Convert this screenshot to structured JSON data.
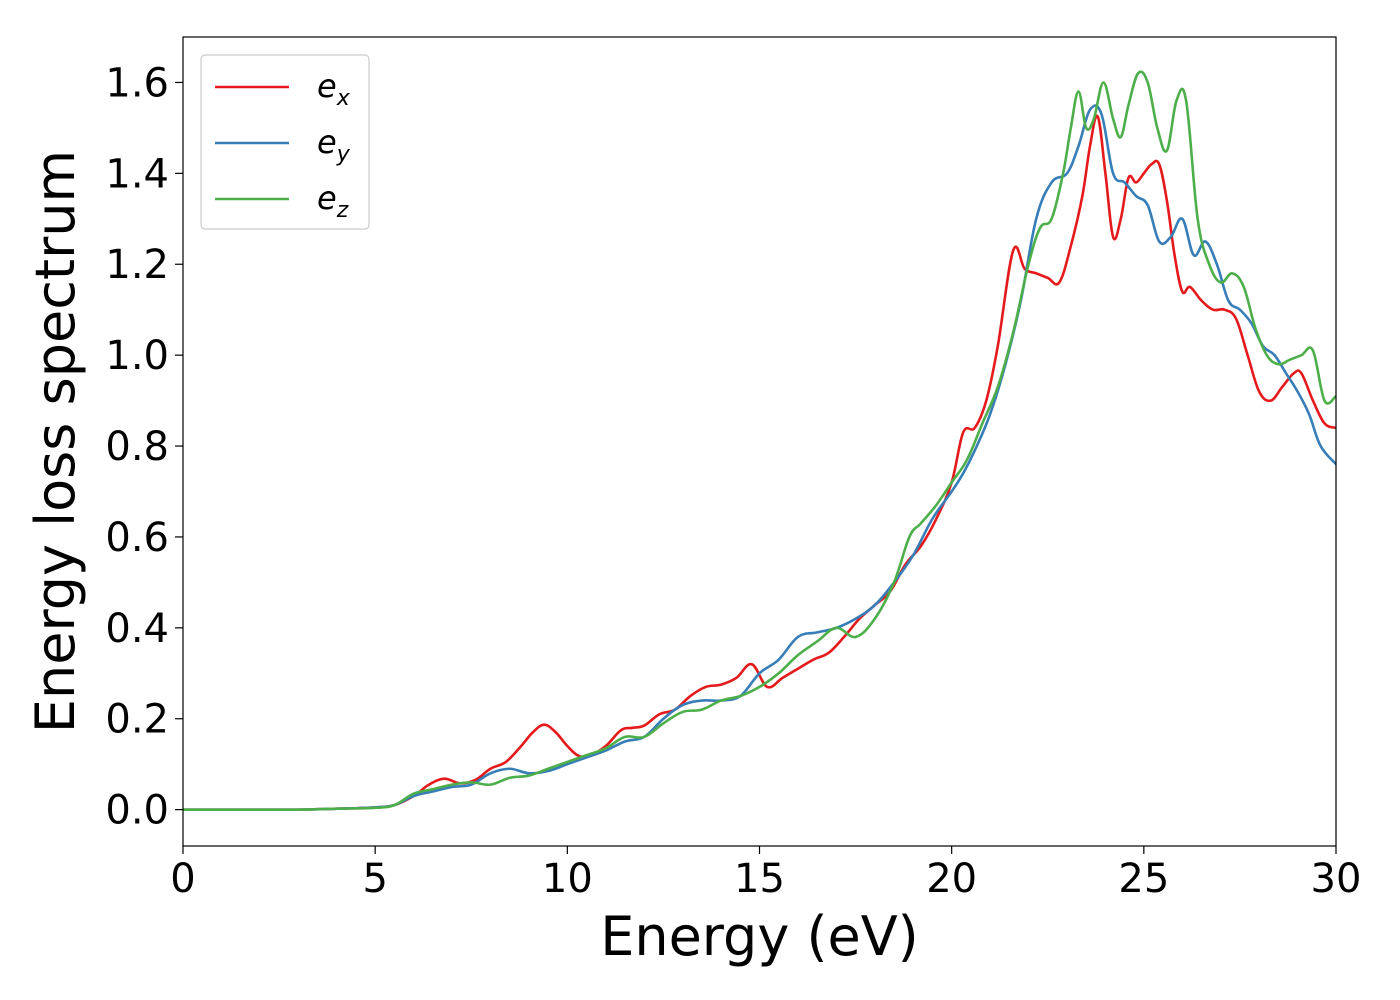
{
  "chart_data": {
    "type": "line",
    "xlabel": "Energy (eV)",
    "ylabel": "Energy loss spectrum",
    "xlim": [
      0,
      30
    ],
    "ylim": [
      -0.08,
      1.7
    ],
    "xticks": [
      0,
      5,
      10,
      15,
      20,
      25,
      30
    ],
    "xtick_labels": [
      "0",
      "5",
      "10",
      "15",
      "20",
      "25",
      "30"
    ],
    "yticks": [
      0.0,
      0.2,
      0.4,
      0.6,
      0.8,
      1.0,
      1.2,
      1.4,
      1.6
    ],
    "ytick_labels": [
      "0.0",
      "0.2",
      "0.4",
      "0.6",
      "0.8",
      "1.0",
      "1.2",
      "1.4",
      "1.6"
    ],
    "grid": false,
    "legend_position": "top-left",
    "series": [
      {
        "name": "e",
        "subscript": "x",
        "color": "#e41a1c",
        "x": [
          0,
          1,
          2,
          3,
          4,
          5,
          5.5,
          6,
          6.4,
          6.8,
          7.2,
          7.6,
          8,
          8.4,
          8.8,
          9.1,
          9.4,
          9.7,
          10,
          10.3,
          10.6,
          11,
          11.4,
          11.7,
          12,
          12.4,
          12.8,
          13.2,
          13.6,
          14,
          14.4,
          14.8,
          15.2,
          15.6,
          16,
          16.4,
          16.8,
          17.2,
          17.6,
          18,
          18.4,
          18.8,
          19.2,
          19.6,
          20,
          20.3,
          20.6,
          20.9,
          21.2,
          21.6,
          21.9,
          22.2,
          22.5,
          22.8,
          23.1,
          23.4,
          23.6,
          23.8,
          24,
          24.2,
          24.4,
          24.6,
          24.8,
          25,
          25.2,
          25.4,
          25.6,
          25.8,
          26,
          26.2,
          26.5,
          26.8,
          27.1,
          27.4,
          27.7,
          28,
          28.3,
          28.6,
          28.9,
          29.1,
          29.4,
          29.7,
          30
        ],
        "y": [
          0.0,
          0.0,
          0.0,
          0.0,
          0.002,
          0.005,
          0.01,
          0.03,
          0.055,
          0.068,
          0.058,
          0.065,
          0.09,
          0.105,
          0.14,
          0.17,
          0.187,
          0.17,
          0.14,
          0.118,
          0.12,
          0.14,
          0.175,
          0.18,
          0.185,
          0.21,
          0.22,
          0.25,
          0.27,
          0.275,
          0.29,
          0.32,
          0.27,
          0.29,
          0.31,
          0.33,
          0.345,
          0.38,
          0.42,
          0.45,
          0.48,
          0.54,
          0.58,
          0.64,
          0.72,
          0.83,
          0.84,
          0.9,
          1.02,
          1.23,
          1.19,
          1.18,
          1.17,
          1.16,
          1.24,
          1.35,
          1.46,
          1.525,
          1.4,
          1.26,
          1.3,
          1.39,
          1.38,
          1.4,
          1.42,
          1.42,
          1.34,
          1.22,
          1.14,
          1.15,
          1.12,
          1.1,
          1.1,
          1.08,
          1.0,
          0.92,
          0.9,
          0.93,
          0.96,
          0.96,
          0.9,
          0.85,
          0.84
        ]
      },
      {
        "name": "e",
        "subscript": "y",
        "color": "#377eb8",
        "x": [
          0,
          1,
          2,
          3,
          4,
          5,
          5.5,
          6,
          6.5,
          7,
          7.5,
          8,
          8.5,
          9,
          9.5,
          10,
          10.5,
          11,
          11.5,
          12,
          12.5,
          13,
          13.5,
          14,
          14.5,
          15,
          15.5,
          16,
          16.5,
          17,
          17.5,
          18,
          18.5,
          19,
          19.5,
          20,
          20.3,
          20.6,
          21,
          21.4,
          21.8,
          22.2,
          22.6,
          23,
          23.3,
          23.6,
          23.9,
          24.2,
          24.5,
          24.8,
          25.1,
          25.4,
          25.7,
          26,
          26.3,
          26.6,
          26.9,
          27.2,
          27.5,
          27.8,
          28.1,
          28.4,
          28.7,
          29,
          29.3,
          29.6,
          30
        ],
        "y": [
          0.0,
          0.0,
          0.0,
          0.0,
          0.002,
          0.005,
          0.01,
          0.03,
          0.04,
          0.05,
          0.055,
          0.08,
          0.09,
          0.08,
          0.085,
          0.1,
          0.115,
          0.13,
          0.15,
          0.16,
          0.2,
          0.23,
          0.24,
          0.24,
          0.25,
          0.3,
          0.33,
          0.38,
          0.39,
          0.4,
          0.42,
          0.45,
          0.5,
          0.56,
          0.64,
          0.7,
          0.74,
          0.79,
          0.87,
          0.98,
          1.12,
          1.3,
          1.38,
          1.4,
          1.46,
          1.54,
          1.53,
          1.4,
          1.38,
          1.35,
          1.33,
          1.25,
          1.26,
          1.3,
          1.22,
          1.25,
          1.2,
          1.12,
          1.1,
          1.07,
          1.02,
          1.0,
          0.96,
          0.92,
          0.87,
          0.8,
          0.76
        ]
      },
      {
        "name": "e",
        "subscript": "z",
        "color": "#4daf4a",
        "x": [
          0,
          1,
          2,
          3,
          4,
          5,
          5.5,
          6,
          6.5,
          7,
          7.5,
          8,
          8.5,
          9,
          9.5,
          10,
          10.5,
          11,
          11.5,
          12,
          12.5,
          13,
          13.5,
          14,
          14.5,
          15,
          15.5,
          16,
          16.5,
          17,
          17.5,
          18,
          18.5,
          18.9,
          19.2,
          19.6,
          20,
          20.4,
          20.8,
          21.2,
          21.6,
          22,
          22.3,
          22.6,
          22.9,
          23.1,
          23.3,
          23.5,
          23.7,
          23.95,
          24.2,
          24.4,
          24.6,
          24.85,
          25.1,
          25.35,
          25.6,
          25.85,
          26.1,
          26.4,
          26.7,
          27,
          27.3,
          27.6,
          27.9,
          28.2,
          28.5,
          28.8,
          29.1,
          29.4,
          29.7,
          30
        ],
        "y": [
          0.0,
          0.0,
          0.0,
          0.0,
          0.002,
          0.004,
          0.01,
          0.035,
          0.045,
          0.055,
          0.06,
          0.055,
          0.07,
          0.075,
          0.09,
          0.105,
          0.12,
          0.135,
          0.16,
          0.16,
          0.19,
          0.215,
          0.22,
          0.24,
          0.25,
          0.27,
          0.3,
          0.34,
          0.37,
          0.4,
          0.38,
          0.42,
          0.5,
          0.6,
          0.63,
          0.67,
          0.72,
          0.77,
          0.85,
          0.93,
          1.05,
          1.2,
          1.28,
          1.3,
          1.4,
          1.5,
          1.58,
          1.5,
          1.52,
          1.6,
          1.52,
          1.48,
          1.55,
          1.62,
          1.6,
          1.5,
          1.45,
          1.56,
          1.56,
          1.3,
          1.2,
          1.16,
          1.18,
          1.15,
          1.06,
          1.0,
          0.98,
          0.99,
          1.0,
          1.01,
          0.9,
          0.91
        ]
      }
    ]
  },
  "colors": {
    "background": "#ffffff",
    "axes": "#000000",
    "legend_border": "#cccccc"
  }
}
